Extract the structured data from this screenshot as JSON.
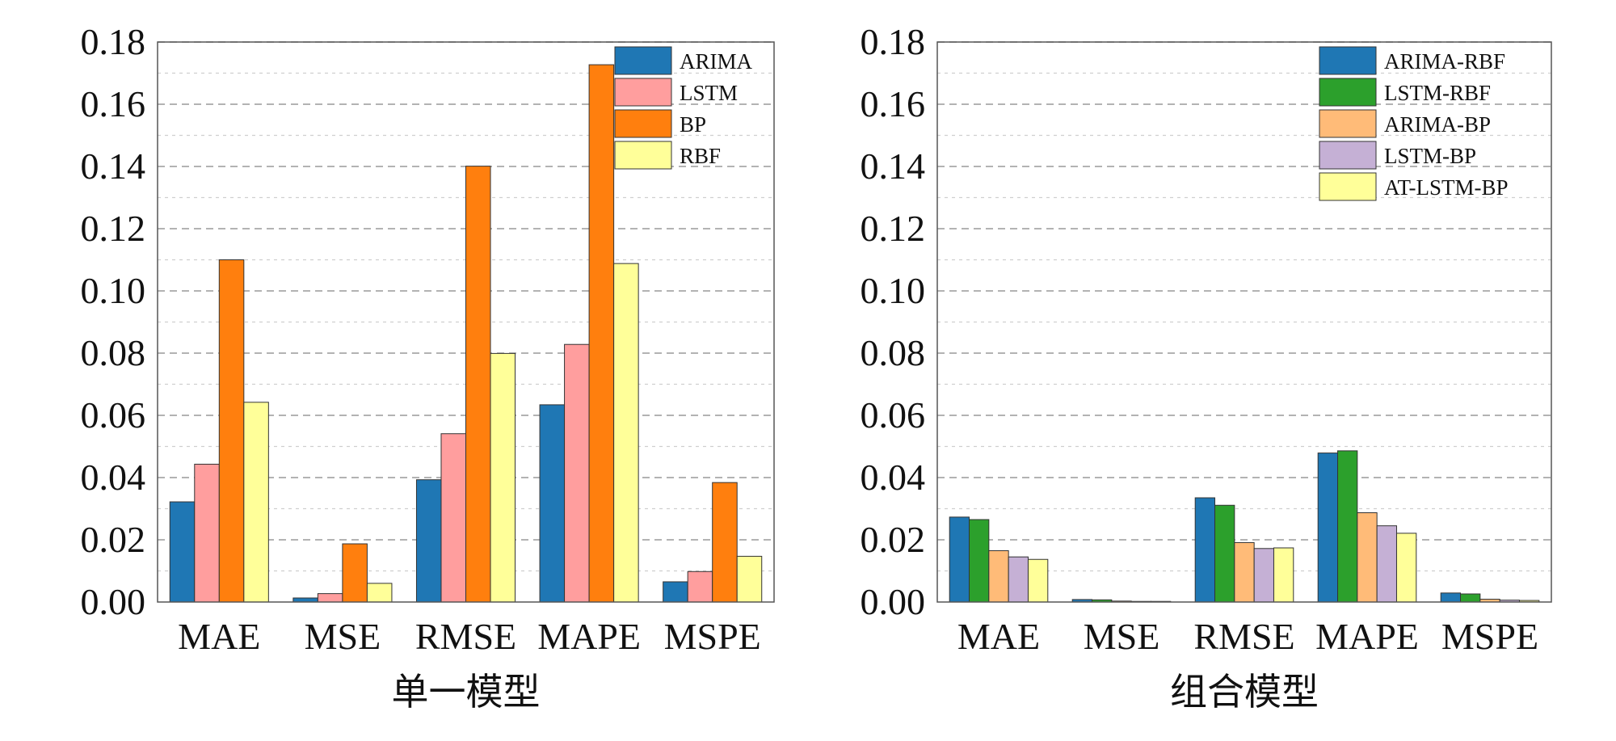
{
  "chart_data": [
    {
      "type": "bar",
      "xlabel": "单一模型",
      "ylabel": "",
      "title": "",
      "ylim": [
        0,
        0.18
      ],
      "yticks": [
        "0.00",
        "0.02",
        "0.04",
        "0.06",
        "0.08",
        "0.10",
        "0.12",
        "0.14",
        "0.16",
        "0.18"
      ],
      "categories": [
        "MAE",
        "MSE",
        "RMSE",
        "MAPE",
        "MSPE"
      ],
      "grid": true,
      "legend_position": "top-right",
      "series": [
        {
          "name": "ARIMA",
          "color": "#1f77b4",
          "values": [
            0.0322,
            0.0013,
            0.0393,
            0.0634,
            0.0065
          ]
        },
        {
          "name": "LSTM",
          "color": "#ff9e9e",
          "values": [
            0.0443,
            0.0027,
            0.0541,
            0.0828,
            0.0098
          ]
        },
        {
          "name": "BP",
          "color": "#ff7f0e",
          "values": [
            0.11,
            0.0187,
            0.1401,
            0.1727,
            0.0384
          ]
        },
        {
          "name": "RBF",
          "color": "#ffff99",
          "values": [
            0.0642,
            0.006,
            0.0799,
            0.1088,
            0.0147
          ]
        }
      ]
    },
    {
      "type": "bar",
      "xlabel": "组合模型",
      "ylabel": "",
      "title": "",
      "ylim": [
        0,
        0.18
      ],
      "yticks": [
        "0.00",
        "0.02",
        "0.04",
        "0.06",
        "0.08",
        "0.10",
        "0.12",
        "0.14",
        "0.16",
        "0.18"
      ],
      "categories": [
        "MAE",
        "MSE",
        "RMSE",
        "MAPE",
        "MSPE"
      ],
      "grid": true,
      "legend_position": "top-right",
      "series": [
        {
          "name": "ARIMA-RBF",
          "color": "#1f77b4",
          "values": [
            0.0273,
            0.0008,
            0.0335,
            0.0479,
            0.0029
          ]
        },
        {
          "name": "LSTM-RBF",
          "color": "#2ca02c",
          "values": [
            0.0265,
            0.0007,
            0.0311,
            0.0486,
            0.0026
          ]
        },
        {
          "name": "ARIMA-BP",
          "color": "#ffbb78",
          "values": [
            0.0165,
            0.0003,
            0.0191,
            0.0287,
            0.0009
          ]
        },
        {
          "name": "LSTM-BP",
          "color": "#c5b0d5",
          "values": [
            0.0145,
            0.0002,
            0.0172,
            0.0245,
            0.0006
          ]
        },
        {
          "name": "AT-LSTM-BP",
          "color": "#ffff99",
          "values": [
            0.0137,
            0.0002,
            0.0174,
            0.0221,
            0.0005
          ]
        }
      ]
    }
  ]
}
